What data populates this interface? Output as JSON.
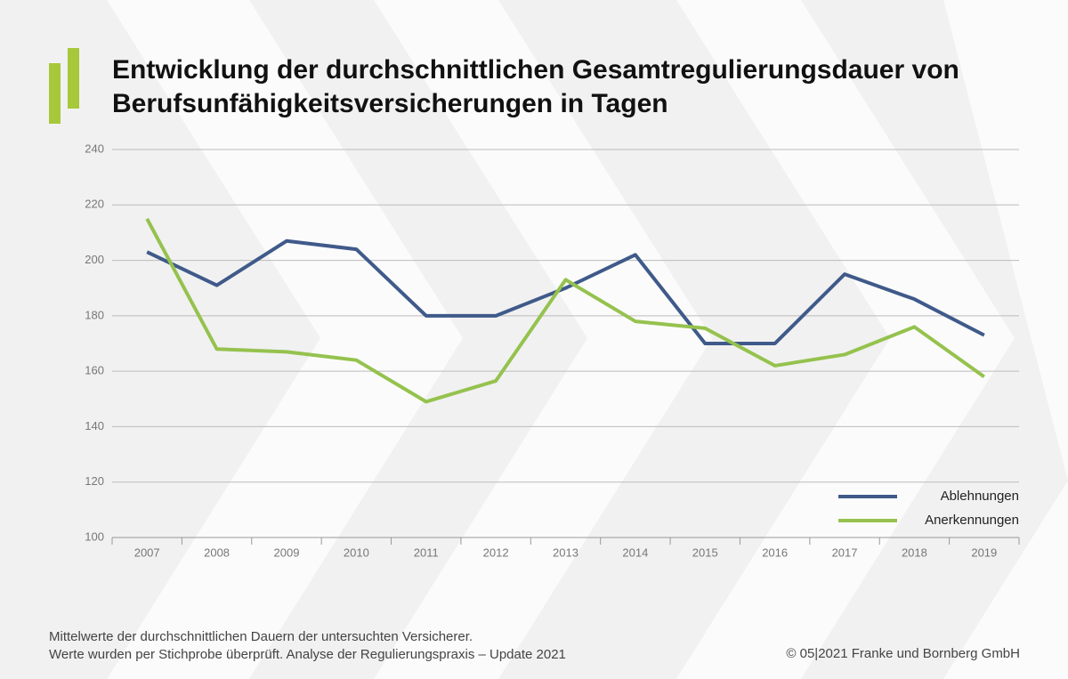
{
  "chart_data": {
    "type": "line",
    "title": "Entwicklung der durchschnittlichen Gesamtregulierungsdauer von Berufsunfähigkeitsversicherungen in Tagen",
    "categories": [
      "2007",
      "2008",
      "2009",
      "2010",
      "2011",
      "2012",
      "2013",
      "2014",
      "2015",
      "2016",
      "2017",
      "2018",
      "2019"
    ],
    "series": [
      {
        "name": "Ablehnungen",
        "color": "#3f5a8a",
        "values": [
          203,
          191,
          207,
          204,
          180,
          180,
          190,
          202,
          170,
          170,
          195,
          186,
          173
        ]
      },
      {
        "name": "Anerkennungen",
        "color": "#95c24e",
        "values": [
          215,
          168,
          167,
          164,
          149,
          156.5,
          193,
          178,
          175.5,
          162,
          166,
          176,
          158
        ]
      }
    ],
    "ylim": [
      100,
      240
    ],
    "yticks": [
      100,
      120,
      140,
      160,
      180,
      200,
      220,
      240
    ],
    "grid": true,
    "legend": "lower right",
    "notes": [
      "Mittelwerte der durchschnittlichen Dauern der untersuchten Versicherer.",
      "Werte wurden per Stichprobe überprüft. Analyse der Regulierungspraxis – Update 2021"
    ],
    "source": "© 05|2021 Franke und Bornberg GmbH"
  }
}
